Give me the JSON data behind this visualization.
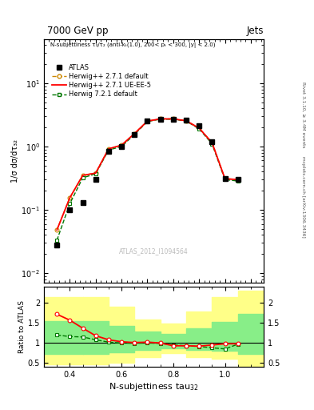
{
  "title_top": "7000 GeV pp",
  "title_right": "Jets",
  "subplot_title": "N-subjettiness τ₃/τ₂ (anti-kₜ(1.0), 200< pₜ < 300, |y| < 2.0)",
  "ylabel_main": "1/σ dσ/dτ₃₂",
  "ylabel_ratio": "Ratio to ATLAS",
  "xlabel": "N-subjettiness tau",
  "watermark": "ATLAS_2012_I1094564",
  "xlim": [
    0.3,
    1.15
  ],
  "ylim_main": [
    0.007,
    50
  ],
  "ylim_ratio": [
    0.4,
    2.4
  ],
  "x_atlas": [
    0.35,
    0.4,
    0.45,
    0.5,
    0.55,
    0.6,
    0.65,
    0.7,
    0.75,
    0.8,
    0.85,
    0.9,
    0.95,
    1.0,
    1.05
  ],
  "y_atlas": [
    0.028,
    0.1,
    0.13,
    0.3,
    0.85,
    1.0,
    1.55,
    2.5,
    2.7,
    2.7,
    2.6,
    2.1,
    1.2,
    0.31,
    0.3
  ],
  "x_hw271_def": [
    0.35,
    0.4,
    0.45,
    0.5,
    0.55,
    0.6,
    0.65,
    0.7,
    0.75,
    0.8,
    0.85,
    0.9,
    0.95,
    1.0,
    1.05
  ],
  "y_hw271_def": [
    0.048,
    0.155,
    0.35,
    0.38,
    0.92,
    1.05,
    1.6,
    2.52,
    2.73,
    2.73,
    2.55,
    1.95,
    1.15,
    0.31,
    0.3
  ],
  "x_hw271_ue": [
    0.35,
    0.4,
    0.45,
    0.5,
    0.55,
    0.6,
    0.65,
    0.7,
    0.75,
    0.8,
    0.85,
    0.9,
    0.95,
    1.0,
    1.05
  ],
  "y_hw271_ue": [
    0.048,
    0.155,
    0.35,
    0.38,
    0.92,
    1.05,
    1.6,
    2.52,
    2.73,
    2.73,
    2.55,
    1.95,
    1.15,
    0.31,
    0.3
  ],
  "x_hw721_def": [
    0.35,
    0.4,
    0.45,
    0.5,
    0.55,
    0.6,
    0.65,
    0.7,
    0.75,
    0.8,
    0.85,
    0.9,
    0.95,
    1.0,
    1.05
  ],
  "y_hw721_def": [
    0.033,
    0.125,
    0.32,
    0.37,
    0.88,
    1.0,
    1.55,
    2.48,
    2.7,
    2.7,
    2.52,
    1.9,
    1.1,
    0.3,
    0.285
  ],
  "ratio_hw271_x": [
    0.35,
    0.4,
    0.45,
    0.5,
    0.55,
    0.6,
    0.65,
    0.7,
    0.75,
    0.8,
    0.85,
    0.9,
    0.95,
    1.0,
    1.05
  ],
  "ratio_hw271_y": [
    1.72,
    1.57,
    1.37,
    1.18,
    1.08,
    1.03,
    1.01,
    1.02,
    1.0,
    0.93,
    0.93,
    0.92,
    0.95,
    0.98,
    0.98
  ],
  "ratio_hw721_x": [
    0.35,
    0.4,
    0.45,
    0.5,
    0.55,
    0.6,
    0.65,
    0.7,
    0.75,
    0.8,
    0.85,
    0.9,
    0.95,
    1.0,
    1.05
  ],
  "ratio_hw721_y": [
    1.2,
    1.16,
    1.15,
    1.08,
    1.02,
    1.0,
    0.99,
    1.0,
    0.99,
    0.95,
    0.93,
    0.91,
    0.88,
    0.85,
    0.97
  ],
  "band_edges": [
    0.3,
    0.45,
    0.55,
    0.65,
    0.75,
    0.85,
    0.95,
    1.05,
    1.15
  ],
  "band_yel_lo": [
    0.47,
    0.47,
    0.5,
    0.65,
    0.75,
    0.65,
    0.6,
    0.42,
    0.42
  ],
  "band_yel_hi": [
    2.15,
    2.15,
    1.9,
    1.58,
    1.48,
    1.78,
    2.15,
    2.3,
    2.3
  ],
  "band_grn_lo": [
    0.72,
    0.72,
    0.77,
    0.83,
    0.87,
    0.82,
    0.8,
    0.72,
    0.72
  ],
  "band_grn_hi": [
    1.55,
    1.55,
    1.42,
    1.28,
    1.22,
    1.37,
    1.52,
    1.72,
    1.72
  ],
  "color_hw271_def": "#cc8800",
  "color_hw271_ue": "#ff0000",
  "color_hw721_def": "#007700",
  "color_atlas": "#000000",
  "color_yellow": "#ffff88",
  "color_green": "#88ee88"
}
